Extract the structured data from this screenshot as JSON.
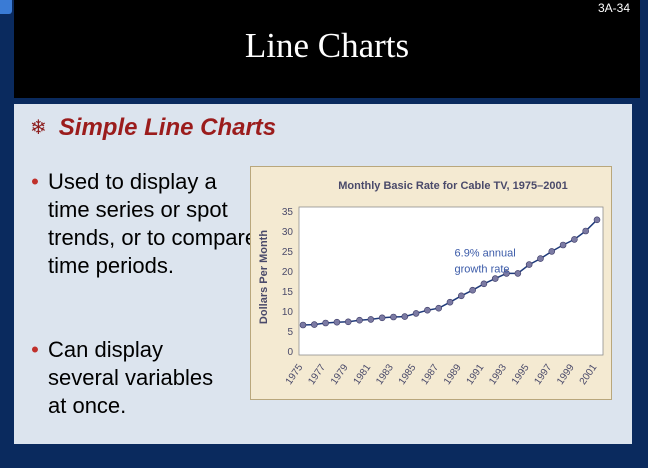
{
  "slide": {
    "number": "3A-34",
    "title": "Line Charts",
    "subtitle": "Simple Line Charts",
    "subtitle_icon": "snowflake-icon",
    "bullets": [
      "Used to display a\ntime series or spot\ntrends, or to compare\ntime periods.",
      "Can display\nseveral variables\nat once."
    ]
  },
  "colors": {
    "title_bar": "#000000",
    "frame": "#0a2a5e",
    "content_bg": "#dce4ee",
    "subtitle": "#9b1c1c",
    "bullet": "#c0302b",
    "chart_bg": "#f4ead2",
    "line": "#1f3a7a",
    "point": "#7b7aa3",
    "annotation": "#3a5aa8"
  },
  "chart_data": {
    "type": "line",
    "title": "Monthly Basic Rate for Cable TV, 1975–2001",
    "xlabel": "",
    "ylabel": "Dollars Per Month",
    "ylim": [
      0,
      35
    ],
    "yticks": [
      0,
      5,
      10,
      15,
      20,
      25,
      30,
      35
    ],
    "xticks": [
      "1975",
      "1977",
      "1979",
      "1981",
      "1983",
      "1985",
      "1987",
      "1989",
      "1991",
      "1993",
      "1995",
      "1997",
      "1999",
      "2001"
    ],
    "x": [
      1975,
      1976,
      1977,
      1978,
      1979,
      1980,
      1981,
      1982,
      1983,
      1984,
      1985,
      1986,
      1987,
      1988,
      1989,
      1990,
      1991,
      1992,
      1993,
      1994,
      1995,
      1996,
      1997,
      1998,
      1999,
      2000,
      2001
    ],
    "series": [
      {
        "values": [
          6.5,
          6.6,
          7.0,
          7.2,
          7.3,
          7.7,
          7.9,
          8.3,
          8.5,
          8.6,
          9.4,
          10.2,
          10.7,
          12.2,
          13.8,
          15.2,
          16.8,
          18.1,
          19.4,
          19.4,
          21.6,
          23.1,
          24.9,
          26.5,
          27.9,
          30.0,
          32.8
        ]
      }
    ],
    "annotations": [
      "6.9% annual\ngrowth rate"
    ],
    "grid": false,
    "legend": "none"
  }
}
